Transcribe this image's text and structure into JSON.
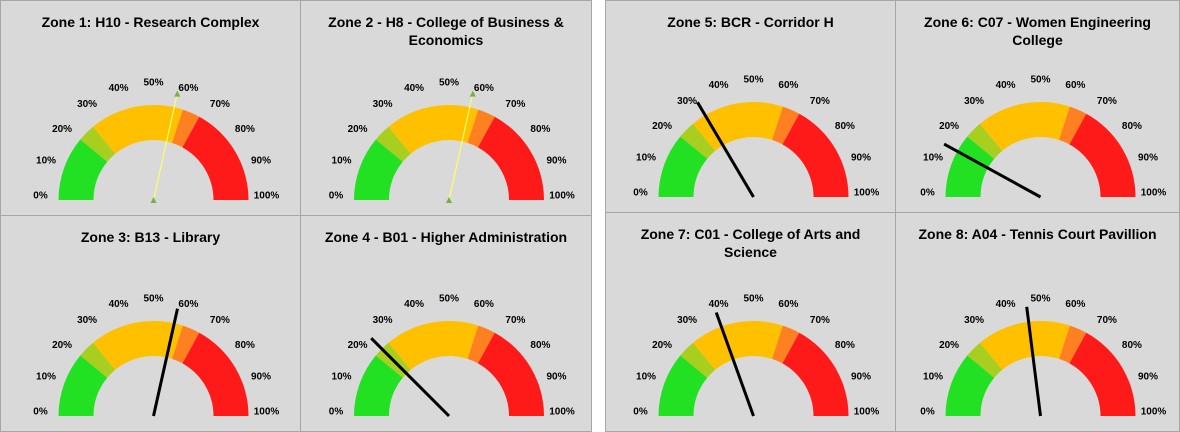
{
  "chart_data": [
    {
      "type": "gauge",
      "title": "Zone 1: H10 - Research Complex",
      "value": 57,
      "needle": "thin",
      "lim": [
        0,
        100
      ],
      "ticks": [
        {
          "value": 0,
          "label": "0%"
        },
        {
          "value": 10,
          "label": "10%"
        },
        {
          "value": 20,
          "label": "20%"
        },
        {
          "value": 30,
          "label": "30%"
        },
        {
          "value": 40,
          "label": "40%"
        },
        {
          "value": 50,
          "label": "50%"
        },
        {
          "value": 60,
          "label": "60%"
        },
        {
          "value": 70,
          "label": "70%"
        },
        {
          "value": 80,
          "label": "80%"
        },
        {
          "value": 90,
          "label": "90%"
        },
        {
          "value": 100,
          "label": "100%"
        }
      ],
      "bands": [
        {
          "from": 0,
          "to": 22,
          "color": "#22e022"
        },
        {
          "from": 22,
          "to": 28,
          "color": "#a8cf20"
        },
        {
          "from": 28,
          "to": 60,
          "color": "#ffc000"
        },
        {
          "from": 60,
          "to": 66,
          "color": "#ff8020"
        },
        {
          "from": 66,
          "to": 100,
          "color": "#ff1a1a"
        }
      ]
    },
    {
      "type": "gauge",
      "title": "Zone 2 - H8 - College of Business & Economics",
      "value": 57,
      "needle": "thin",
      "lim": [
        0,
        100
      ],
      "ticks": [
        {
          "value": 0,
          "label": "0%"
        },
        {
          "value": 10,
          "label": "10%"
        },
        {
          "value": 20,
          "label": "20%"
        },
        {
          "value": 30,
          "label": "30%"
        },
        {
          "value": 40,
          "label": "40%"
        },
        {
          "value": 50,
          "label": "50%"
        },
        {
          "value": 60,
          "label": "60%"
        },
        {
          "value": 70,
          "label": "70%"
        },
        {
          "value": 80,
          "label": "80%"
        },
        {
          "value": 90,
          "label": "90%"
        },
        {
          "value": 100,
          "label": "100%"
        }
      ],
      "bands": [
        {
          "from": 0,
          "to": 22,
          "color": "#22e022"
        },
        {
          "from": 22,
          "to": 28,
          "color": "#a8cf20"
        },
        {
          "from": 28,
          "to": 60,
          "color": "#ffc000"
        },
        {
          "from": 60,
          "to": 66,
          "color": "#ff8020"
        },
        {
          "from": 66,
          "to": 100,
          "color": "#ff1a1a"
        }
      ]
    },
    {
      "type": "gauge",
      "title": "Zone 3: B13 - Library",
      "value": 57,
      "needle": "thick",
      "lim": [
        0,
        100
      ],
      "ticks": [
        {
          "value": 0,
          "label": "0%"
        },
        {
          "value": 10,
          "label": "10%"
        },
        {
          "value": 20,
          "label": "20%"
        },
        {
          "value": 30,
          "label": "30%"
        },
        {
          "value": 40,
          "label": "40%"
        },
        {
          "value": 50,
          "label": "50%"
        },
        {
          "value": 60,
          "label": "60%"
        },
        {
          "value": 70,
          "label": "70%"
        },
        {
          "value": 80,
          "label": "80%"
        },
        {
          "value": 90,
          "label": "90%"
        },
        {
          "value": 100,
          "label": "100%"
        }
      ],
      "bands": [
        {
          "from": 0,
          "to": 22,
          "color": "#22e022"
        },
        {
          "from": 22,
          "to": 28,
          "color": "#a8cf20"
        },
        {
          "from": 28,
          "to": 60,
          "color": "#ffc000"
        },
        {
          "from": 60,
          "to": 66,
          "color": "#ff8020"
        },
        {
          "from": 66,
          "to": 100,
          "color": "#ff1a1a"
        }
      ]
    },
    {
      "type": "gauge",
      "title": "Zone 4 - B01 - Higher Administration",
      "value": 25,
      "needle": "thick",
      "lim": [
        0,
        100
      ],
      "ticks": [
        {
          "value": 0,
          "label": "0%"
        },
        {
          "value": 10,
          "label": "10%"
        },
        {
          "value": 20,
          "label": "20%"
        },
        {
          "value": 30,
          "label": "30%"
        },
        {
          "value": 40,
          "label": "40%"
        },
        {
          "value": 50,
          "label": "50%"
        },
        {
          "value": 60,
          "label": "60%"
        },
        {
          "value": 70,
          "label": "70%"
        },
        {
          "value": 80,
          "label": "80%"
        },
        {
          "value": 90,
          "label": "90%"
        },
        {
          "value": 100,
          "label": "100%"
        }
      ],
      "bands": [
        {
          "from": 0,
          "to": 22,
          "color": "#22e022"
        },
        {
          "from": 22,
          "to": 28,
          "color": "#a8cf20"
        },
        {
          "from": 28,
          "to": 60,
          "color": "#ffc000"
        },
        {
          "from": 60,
          "to": 66,
          "color": "#ff8020"
        },
        {
          "from": 66,
          "to": 100,
          "color": "#ff1a1a"
        }
      ]
    },
    {
      "type": "gauge",
      "title": "Zone 5: BCR - Corridor H",
      "value": 33,
      "needle": "thick",
      "lim": [
        0,
        100
      ],
      "ticks": [
        {
          "value": 0,
          "label": "0%"
        },
        {
          "value": 10,
          "label": "10%"
        },
        {
          "value": 20,
          "label": "20%"
        },
        {
          "value": 30,
          "label": "30%"
        },
        {
          "value": 40,
          "label": "40%"
        },
        {
          "value": 50,
          "label": "50%"
        },
        {
          "value": 60,
          "label": "60%"
        },
        {
          "value": 70,
          "label": "70%"
        },
        {
          "value": 80,
          "label": "80%"
        },
        {
          "value": 90,
          "label": "90%"
        },
        {
          "value": 100,
          "label": "100%"
        }
      ],
      "bands": [
        {
          "from": 0,
          "to": 22,
          "color": "#22e022"
        },
        {
          "from": 22,
          "to": 28,
          "color": "#a8cf20"
        },
        {
          "from": 28,
          "to": 60,
          "color": "#ffc000"
        },
        {
          "from": 60,
          "to": 66,
          "color": "#ff8020"
        },
        {
          "from": 66,
          "to": 100,
          "color": "#ff1a1a"
        }
      ]
    },
    {
      "type": "gauge",
      "title": "Zone 6: C07 - Women Engineering College",
      "value": 16,
      "needle": "thick",
      "lim": [
        0,
        100
      ],
      "ticks": [
        {
          "value": 0,
          "label": "0%"
        },
        {
          "value": 10,
          "label": "10%"
        },
        {
          "value": 20,
          "label": "20%"
        },
        {
          "value": 30,
          "label": "30%"
        },
        {
          "value": 40,
          "label": "40%"
        },
        {
          "value": 50,
          "label": "50%"
        },
        {
          "value": 60,
          "label": "60%"
        },
        {
          "value": 70,
          "label": "70%"
        },
        {
          "value": 80,
          "label": "80%"
        },
        {
          "value": 90,
          "label": "90%"
        },
        {
          "value": 100,
          "label": "100%"
        }
      ],
      "bands": [
        {
          "from": 0,
          "to": 22,
          "color": "#22e022"
        },
        {
          "from": 22,
          "to": 28,
          "color": "#a8cf20"
        },
        {
          "from": 28,
          "to": 60,
          "color": "#ffc000"
        },
        {
          "from": 60,
          "to": 66,
          "color": "#ff8020"
        },
        {
          "from": 66,
          "to": 100,
          "color": "#ff1a1a"
        }
      ]
    },
    {
      "type": "gauge",
      "title": "Zone 7: C01 - College of Arts and Science",
      "value": 39,
      "needle": "thick",
      "lim": [
        0,
        100
      ],
      "ticks": [
        {
          "value": 0,
          "label": "0%"
        },
        {
          "value": 10,
          "label": "10%"
        },
        {
          "value": 20,
          "label": "20%"
        },
        {
          "value": 30,
          "label": "30%"
        },
        {
          "value": 40,
          "label": "40%"
        },
        {
          "value": 50,
          "label": "50%"
        },
        {
          "value": 60,
          "label": "60%"
        },
        {
          "value": 70,
          "label": "70%"
        },
        {
          "value": 80,
          "label": "80%"
        },
        {
          "value": 90,
          "label": "90%"
        },
        {
          "value": 100,
          "label": "100%"
        }
      ],
      "bands": [
        {
          "from": 0,
          "to": 22,
          "color": "#22e022"
        },
        {
          "from": 22,
          "to": 28,
          "color": "#a8cf20"
        },
        {
          "from": 28,
          "to": 60,
          "color": "#ffc000"
        },
        {
          "from": 60,
          "to": 66,
          "color": "#ff8020"
        },
        {
          "from": 66,
          "to": 100,
          "color": "#ff1a1a"
        }
      ]
    },
    {
      "type": "gauge",
      "title": "Zone 8: A04 - Tennis Court Pavillion",
      "value": 46,
      "needle": "thick",
      "lim": [
        0,
        100
      ],
      "ticks": [
        {
          "value": 0,
          "label": "0%"
        },
        {
          "value": 10,
          "label": "10%"
        },
        {
          "value": 20,
          "label": "20%"
        },
        {
          "value": 30,
          "label": "30%"
        },
        {
          "value": 40,
          "label": "40%"
        },
        {
          "value": 50,
          "label": "50%"
        },
        {
          "value": 60,
          "label": "60%"
        },
        {
          "value": 70,
          "label": "70%"
        },
        {
          "value": 80,
          "label": "80%"
        },
        {
          "value": 90,
          "label": "90%"
        },
        {
          "value": 100,
          "label": "100%"
        }
      ],
      "bands": [
        {
          "from": 0,
          "to": 22,
          "color": "#22e022"
        },
        {
          "from": 22,
          "to": 28,
          "color": "#a8cf20"
        },
        {
          "from": 28,
          "to": 60,
          "color": "#ffc000"
        },
        {
          "from": 60,
          "to": 66,
          "color": "#ff8020"
        },
        {
          "from": 66,
          "to": 100,
          "color": "#ff1a1a"
        }
      ]
    }
  ]
}
